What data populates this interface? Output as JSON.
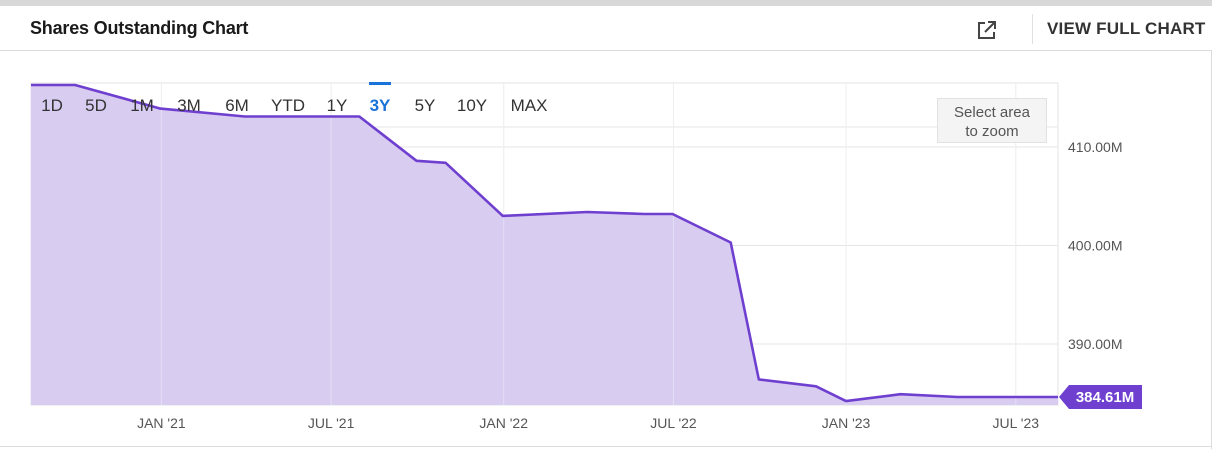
{
  "header": {
    "title": "Shares Outstanding Chart",
    "full_chart_label": "VIEW FULL CHART"
  },
  "icons": {
    "expand": "external-link-icon"
  },
  "ranges": [
    "1D",
    "5D",
    "1M",
    "3M",
    "6M",
    "YTD",
    "1Y",
    "3Y",
    "5Y",
    "10Y",
    "MAX"
  ],
  "active_range": "3Y",
  "zoom_hint": [
    "Select area",
    "to zoom"
  ],
  "colors": {
    "line": "#6f3fd0",
    "fill": "#d8cdf0",
    "accent": "#1a73d9",
    "badge": "#6f3fd0"
  },
  "chart_data": {
    "type": "area",
    "title": "Shares Outstanding Chart",
    "x_tick_labels": [
      "JAN '21",
      "JUL '21",
      "JAN '22",
      "JUL '22",
      "JAN '23",
      "JUL '23"
    ],
    "x_ticks": [
      "2021-01-01",
      "2021-07-01",
      "2022-01-01",
      "2022-07-01",
      "2023-01-01",
      "2023-07-01"
    ],
    "xlim": [
      "2020-08-15",
      "2023-08-15"
    ],
    "y_tick_labels": [
      "390.00M",
      "400.00M",
      "410.00M"
    ],
    "y_ticks": [
      390,
      400,
      410
    ],
    "ylim": [
      383.8,
      416.5
    ],
    "y_unit": "M",
    "grid": true,
    "last_value_label": "384.61M",
    "series": [
      {
        "points": [
          [
            "2020-08-15",
            416.3
          ],
          [
            "2020-10-01",
            416.3
          ],
          [
            "2020-12-31",
            413.9
          ],
          [
            "2021-03-31",
            413.1
          ],
          [
            "2021-06-30",
            413.1
          ],
          [
            "2021-07-31",
            413.1
          ],
          [
            "2021-09-30",
            408.6
          ],
          [
            "2021-10-31",
            408.4
          ],
          [
            "2021-12-31",
            403.0
          ],
          [
            "2022-03-31",
            403.4
          ],
          [
            "2022-05-31",
            403.2
          ],
          [
            "2022-06-30",
            403.2
          ],
          [
            "2022-08-31",
            400.3
          ],
          [
            "2022-09-30",
            386.4
          ],
          [
            "2022-11-30",
            385.7
          ],
          [
            "2023-01-01",
            384.2
          ],
          [
            "2023-02-28",
            384.9
          ],
          [
            "2023-04-30",
            384.61
          ],
          [
            "2023-08-15",
            384.61
          ]
        ]
      }
    ]
  }
}
